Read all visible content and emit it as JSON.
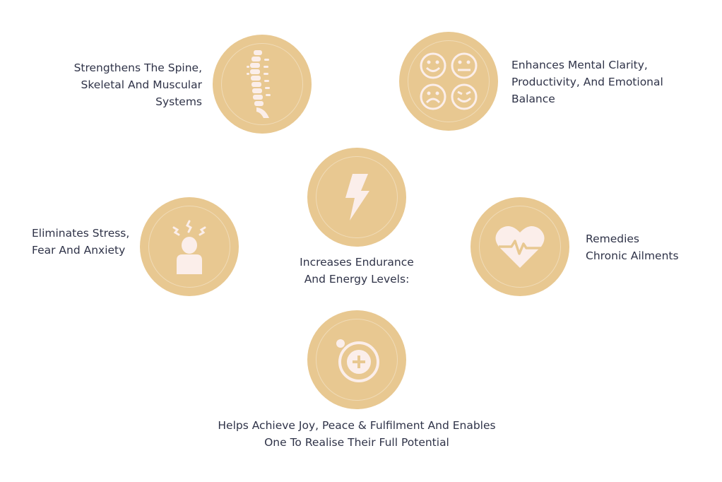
{
  "colors": {
    "circle": "#e8c891",
    "icon": "#fbeeea",
    "text": "#2f3348"
  },
  "benefits": {
    "spine": {
      "icon": "spine-icon",
      "lines": [
        "Strengthens The Spine,",
        "Skeletal And Muscular",
        "Systems"
      ]
    },
    "mental": {
      "icon": "emotions-faces-icon",
      "lines": [
        "Enhances Mental Clarity,",
        "Productivity, And Emotional",
        "Balance"
      ]
    },
    "energy": {
      "icon": "lightning-bolt-icon",
      "lines": [
        "Increases Endurance",
        "And Energy Levels:"
      ]
    },
    "stress": {
      "icon": "stressed-person-icon",
      "lines": [
        "Eliminates Stress,",
        "Fear And Anxiety"
      ]
    },
    "ailments": {
      "icon": "heart-pulse-icon",
      "lines": [
        "Remedies",
        "Chronic Ailments"
      ]
    },
    "joy": {
      "icon": "plus-circle-icon",
      "lines": [
        "Helps Achieve Joy, Peace & Fulfilment And Enables",
        "One To Realise Their Full Potential"
      ]
    }
  }
}
